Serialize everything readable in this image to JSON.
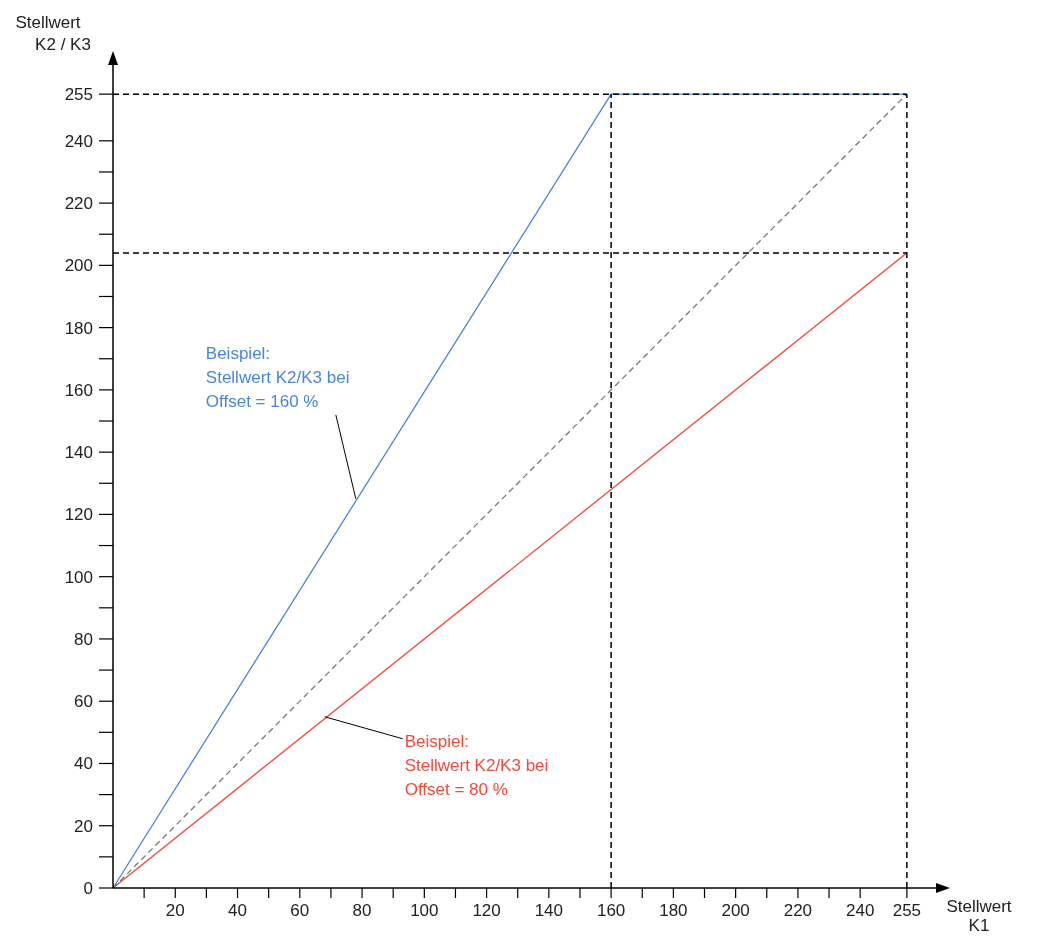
{
  "chart_data": {
    "type": "line",
    "xlabel": "Stellwert\nK1",
    "ylabel": "Stellwert\nK2 / K3",
    "xlim": [
      0,
      265
    ],
    "ylim": [
      0,
      265
    ],
    "xticks": [
      {
        "value": 10,
        "label": null
      },
      20,
      {
        "value": 30,
        "label": null
      },
      40,
      {
        "value": 50,
        "label": null
      },
      60,
      {
        "value": 70,
        "label": null
      },
      80,
      {
        "value": 90,
        "label": null
      },
      100,
      {
        "value": 110,
        "label": null
      },
      120,
      {
        "value": 130,
        "label": null
      },
      140,
      {
        "value": 150,
        "label": null
      },
      160,
      {
        "value": 170,
        "label": null
      },
      180,
      {
        "value": 190,
        "label": null
      },
      200,
      {
        "value": 210,
        "label": null
      },
      220,
      {
        "value": 230,
        "label": null
      },
      240,
      255
    ],
    "yticks": [
      0,
      {
        "value": 10,
        "label": null
      },
      20,
      {
        "value": 30,
        "label": null
      },
      40,
      {
        "value": 50,
        "label": null
      },
      60,
      {
        "value": 70,
        "label": null
      },
      80,
      {
        "value": 90,
        "label": null
      },
      100,
      {
        "value": 110,
        "label": null
      },
      120,
      {
        "value": 130,
        "label": null
      },
      140,
      {
        "value": 150,
        "label": null
      },
      160,
      {
        "value": 170,
        "label": null
      },
      180,
      {
        "value": 190,
        "label": null
      },
      200,
      {
        "value": 210,
        "label": null
      },
      220,
      {
        "value": 230,
        "label": null
      },
      240,
      255
    ],
    "series": [
      {
        "color": "#4a86d8",
        "x": [
          0,
          160,
          255
        ],
        "values": [
          0,
          255,
          255
        ]
      },
      {
        "color": "#f04a3a",
        "x": [
          0,
          255
        ],
        "values": [
          0,
          204
        ]
      },
      {
        "color": "#777777",
        "x": [
          0,
          255
        ],
        "values": [
          0,
          255
        ],
        "line_style": "dashed"
      }
    ],
    "ref_lines": [
      {
        "axis": "x",
        "value": 160,
        "label": null,
        "color": "#000000",
        "line_style": "dashed"
      },
      {
        "axis": "x",
        "value": 255,
        "label": null,
        "color": "#000000",
        "line_style": "dashed"
      },
      {
        "axis": "y",
        "value": 204,
        "label": null,
        "color": "#000000",
        "line_style": "dashed"
      },
      {
        "axis": "y",
        "value": 255,
        "label": null,
        "color": "#000000",
        "line_style": "dashed"
      }
    ],
    "annotations": [
      {
        "text": "Beispiel:\nStellwert K2/K3 bei\nOffset = 160 %",
        "x": 78,
        "y": 125
      },
      {
        "text": "Beispiel:\nStellwert K2/K3 bei\nOffset = 80 %",
        "x": 68,
        "y": 55
      }
    ],
    "tick_labels": true
  }
}
